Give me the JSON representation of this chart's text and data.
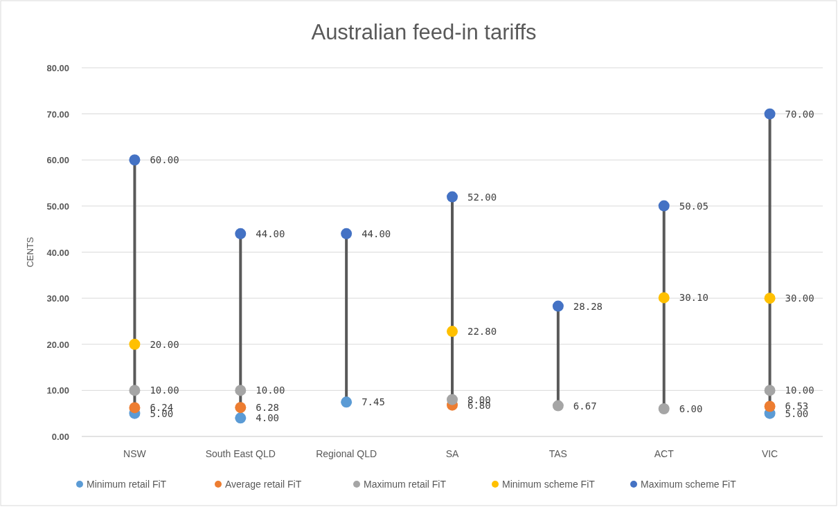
{
  "chart_data": {
    "type": "scatter",
    "title": "Australian feed-in tariffs",
    "ylabel": "CENTS",
    "categories": [
      "NSW",
      "South East QLD",
      "Regional QLD",
      "SA",
      "TAS",
      "ACT",
      "VIC"
    ],
    "series": [
      {
        "name": "Minimum retail FiT",
        "color": "#5b9bd5",
        "values": [
          5,
          4,
          7.45,
          null,
          null,
          null,
          5
        ],
        "value_labels": [
          "5.00",
          "4.00",
          "7.45",
          null,
          null,
          null,
          "5.00"
        ]
      },
      {
        "name": "Average retail FiT",
        "color": "#ed7d31",
        "values": [
          6.24,
          6.28,
          null,
          6.8,
          null,
          null,
          6.53
        ],
        "value_labels": [
          "6.24",
          "6.28",
          null,
          "6.80",
          null,
          null,
          "6.53"
        ]
      },
      {
        "name": "Maximum retail FiT",
        "color": "#a5a5a5",
        "values": [
          10,
          10,
          null,
          8,
          6.67,
          6,
          10
        ],
        "value_labels": [
          "10.00",
          "10.00",
          null,
          "8.00",
          "6.67",
          "6.00",
          "10.00"
        ]
      },
      {
        "name": "Minimum scheme FiT",
        "color": "#ffc000",
        "values": [
          20,
          null,
          null,
          22.8,
          null,
          30.1,
          30
        ],
        "value_labels": [
          "20.00",
          null,
          null,
          "22.80",
          null,
          "30.10",
          "30.00"
        ]
      },
      {
        "name": "Maximum scheme FiT",
        "color": "#4472c4",
        "values": [
          60,
          44,
          44,
          52,
          28.28,
          50.05,
          70
        ],
        "value_labels": [
          "60.00",
          "44.00",
          "44.00",
          "52.00",
          "28.28",
          "50.05",
          "70.00"
        ]
      }
    ],
    "ylim": [
      0,
      80
    ],
    "yticks": [
      {
        "value": 0,
        "label": "0.00"
      },
      {
        "value": 10,
        "label": "10.00"
      },
      {
        "value": 20,
        "label": "20.00"
      },
      {
        "value": 30,
        "label": "30.00"
      },
      {
        "value": 40,
        "label": "40.00"
      },
      {
        "value": 50,
        "label": "50.00"
      },
      {
        "value": 60,
        "label": "60.00"
      },
      {
        "value": 70,
        "label": "70.00"
      },
      {
        "value": 80,
        "label": "80.00"
      }
    ],
    "grid": "y",
    "legend": "bottom",
    "marker": "circle"
  }
}
